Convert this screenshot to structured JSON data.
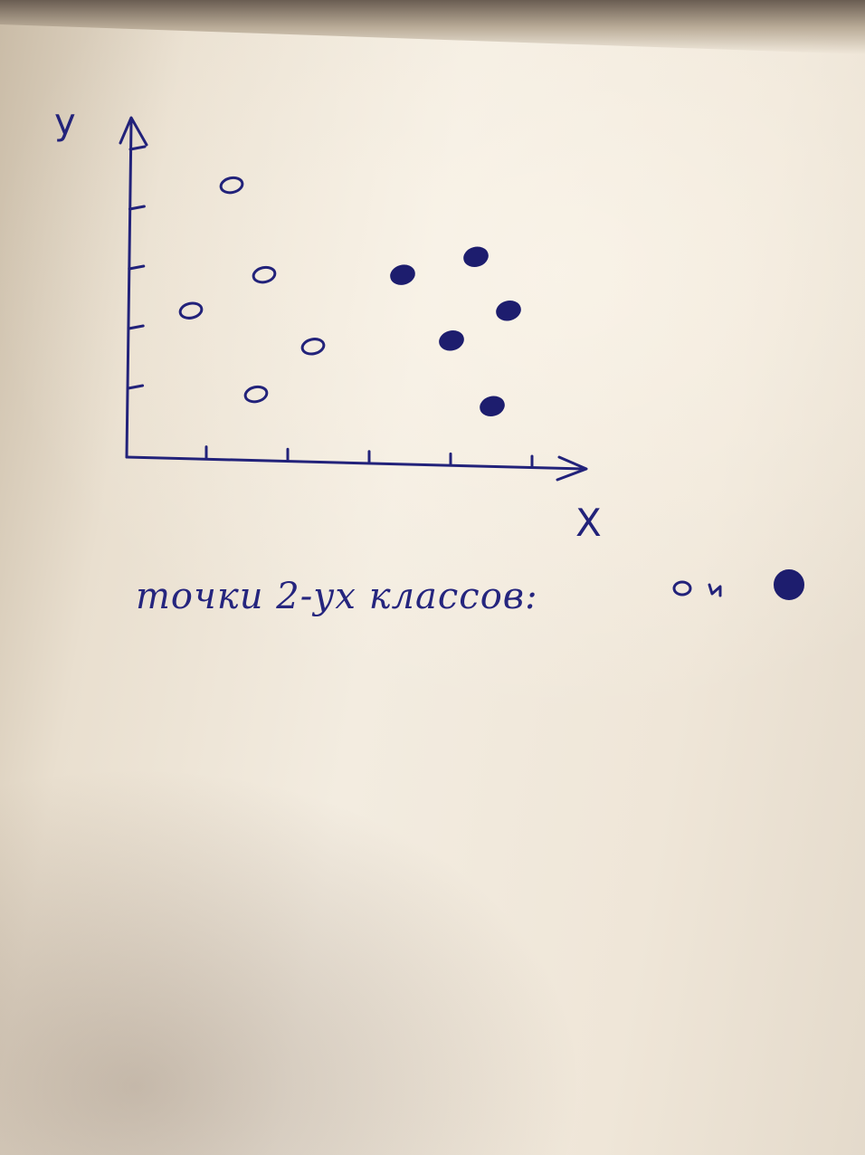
{
  "chart_data": {
    "type": "scatter",
    "xlabel": "X",
    "ylabel": "y",
    "xlim": [
      0,
      5.5
    ],
    "ylim": [
      0,
      5.5
    ],
    "x_ticks": 5,
    "y_ticks": 5,
    "grid": false,
    "series": [
      {
        "marker": "hollow-circle",
        "points": [
          {
            "x": 1.2,
            "y": 4.4
          },
          {
            "x": 1.6,
            "y": 2.9
          },
          {
            "x": 0.7,
            "y": 2.3
          },
          {
            "x": 2.2,
            "y": 1.7
          },
          {
            "x": 1.5,
            "y": 0.9
          }
        ]
      },
      {
        "marker": "filled-circle",
        "points": [
          {
            "x": 3.3,
            "y": 2.9
          },
          {
            "x": 4.2,
            "y": 3.2
          },
          {
            "x": 4.6,
            "y": 2.3
          },
          {
            "x": 3.9,
            "y": 1.8
          },
          {
            "x": 4.4,
            "y": 0.7
          }
        ]
      }
    ],
    "annotation": "точки 2-ух классов:"
  },
  "colors": {
    "ink": "#22227a",
    "paper": "#f3ece0"
  }
}
